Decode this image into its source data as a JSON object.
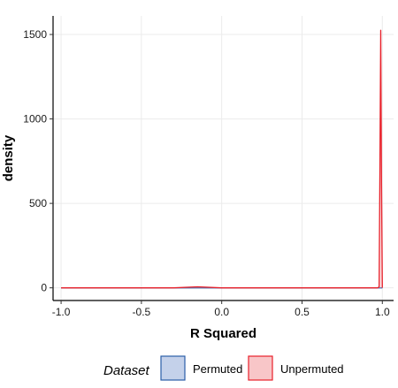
{
  "chart_data": {
    "type": "area",
    "xlabel": "R Squared",
    "ylabel": "density",
    "xlim": [
      -1.05,
      1.07
    ],
    "ylim": [
      -75,
      1610
    ],
    "x_ticks": [
      -1.0,
      -0.5,
      0.0,
      0.5,
      1.0
    ],
    "x_tick_labels": [
      "-1.0",
      "-0.5",
      "0.0",
      "0.5",
      "1.0"
    ],
    "y_ticks": [
      0,
      500,
      1000,
      1500
    ],
    "y_tick_labels": [
      "0",
      "500",
      "1000",
      "1500"
    ],
    "grid": true,
    "legend_position": "bottom",
    "legend_title": "Dataset",
    "series": [
      {
        "name": "Permuted",
        "fill_color": "#c4d1ea",
        "line_color": "#2b5ea8",
        "x": [
          -1.0,
          1.0
        ],
        "y": [
          0,
          0
        ]
      },
      {
        "name": "Unpermuted",
        "fill_color": "#f8c6c8",
        "line_color": "#e8202a",
        "x": [
          -1.0,
          -0.5,
          -0.3,
          -0.2,
          -0.15,
          -0.1,
          0.0,
          0.5,
          0.97,
          0.98,
          0.985,
          0.99,
          0.995,
          1.0
        ],
        "y": [
          0,
          0,
          0,
          4,
          6,
          4,
          0,
          0,
          0,
          5,
          700,
          1525,
          600,
          0
        ]
      }
    ]
  }
}
